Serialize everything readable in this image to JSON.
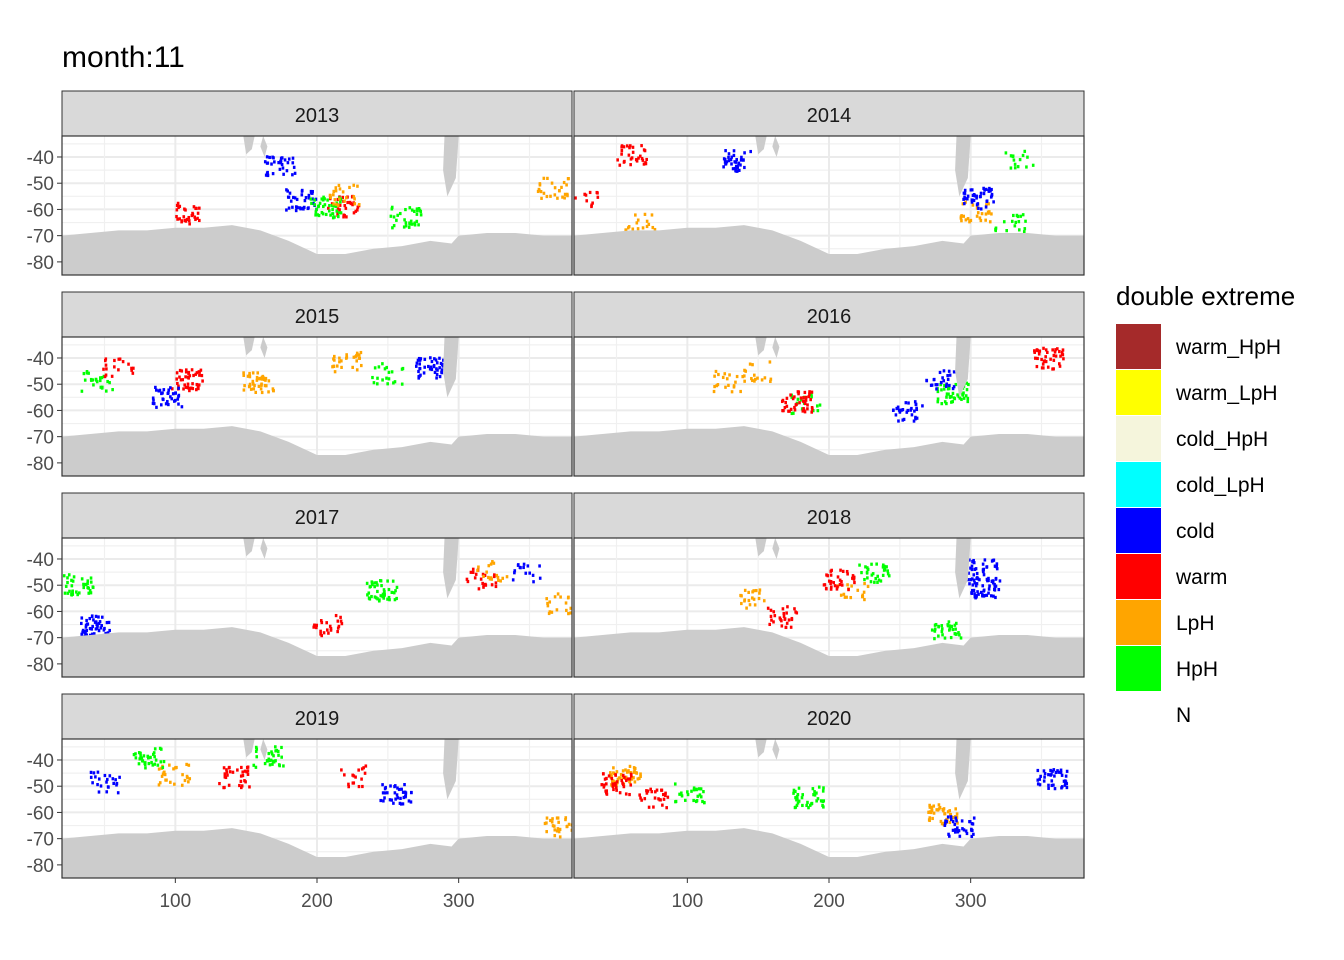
{
  "chart_data": {
    "type": "heatmap",
    "title": "month:11",
    "xlabel": "",
    "ylabel": "",
    "facet_by": "year",
    "facets": [
      {
        "label": "2013"
      },
      {
        "label": "2014"
      },
      {
        "label": "2015"
      },
      {
        "label": "2016"
      },
      {
        "label": "2017"
      },
      {
        "label": "2018"
      },
      {
        "label": "2019"
      },
      {
        "label": "2020"
      }
    ],
    "xlim": [
      20,
      380
    ],
    "ylim": [
      -85,
      -32
    ],
    "x_ticks": [
      100,
      200,
      300
    ],
    "y_ticks": [
      -40,
      -50,
      -60,
      -70,
      -80
    ],
    "y_tick_labels": [
      "-40",
      "-50",
      "-60",
      "-70",
      "-80"
    ],
    "x_tick_labels": [
      "100",
      "200",
      "300"
    ],
    "grid": true,
    "land_color": "#cccccc",
    "ocean_color": "#ffffff",
    "legend": {
      "title": "double extreme",
      "position": "right",
      "entries": [
        {
          "label": "warm_HpH",
          "color": "#a52a2a"
        },
        {
          "label": "warm_LpH",
          "color": "#ffff00"
        },
        {
          "label": "cold_HpH",
          "color": "#f5f5dc"
        },
        {
          "label": "cold_LpH",
          "color": "#00ffff"
        },
        {
          "label": "cold",
          "color": "#0000ff"
        },
        {
          "label": "warm",
          "color": "#ff0000"
        },
        {
          "label": "LpH",
          "color": "#ffa500"
        },
        {
          "label": "HpH",
          "color": "#00ff00"
        },
        {
          "label": "N",
          "color": "#ffffff"
        }
      ]
    }
  }
}
